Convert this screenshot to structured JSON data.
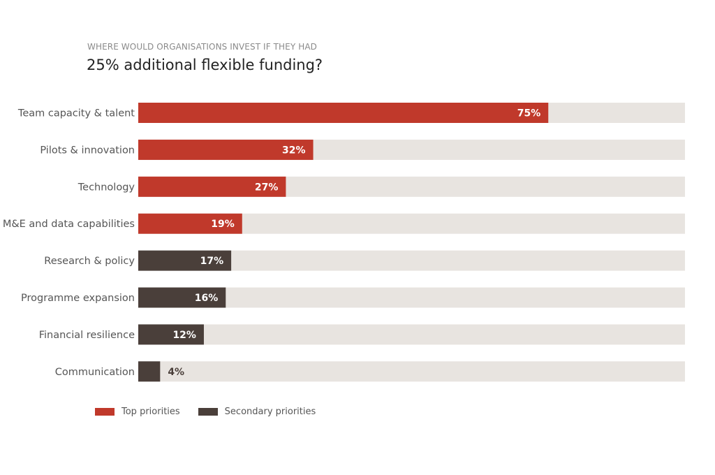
{
  "header": {
    "subtitle": "WHERE WOULD ORGANISATIONS INVEST IF THEY HAD",
    "title": "25% additional flexible funding?"
  },
  "legend": {
    "items": [
      {
        "label": "Top priorities",
        "color": "#c0392b"
      },
      {
        "label": "Secondary priorities",
        "color": "#4a3f3a"
      }
    ]
  },
  "colors": {
    "track": "#e8e4e0",
    "top": "#c0392b",
    "secondary": "#4a3f3a",
    "label_inside": "#ffffff",
    "label_outside": "#4a3f3a"
  },
  "chart_data": {
    "type": "bar",
    "orientation": "horizontal",
    "title": "25% additional flexible funding?",
    "subtitle": "WHERE WOULD ORGANISATIONS INVEST IF THEY HAD",
    "xlim": [
      0,
      100
    ],
    "grid": false,
    "legend_position": "bottom-left",
    "categories": [
      "Team capacity & talent",
      "Pilots & innovation",
      "Technology",
      "M&E and data capabilities",
      "Research & policy",
      "Programme expansion",
      "Financial resilience",
      "Communication"
    ],
    "values": [
      75,
      32,
      27,
      19,
      17,
      16,
      12,
      4
    ],
    "value_labels": [
      "75%",
      "32%",
      "27%",
      "19%",
      "17%",
      "16%",
      "12%",
      "4%"
    ],
    "groups": [
      "Top priorities",
      "Top priorities",
      "Top priorities",
      "Top priorities",
      "Secondary priorities",
      "Secondary priorities",
      "Secondary priorities",
      "Secondary priorities"
    ]
  }
}
